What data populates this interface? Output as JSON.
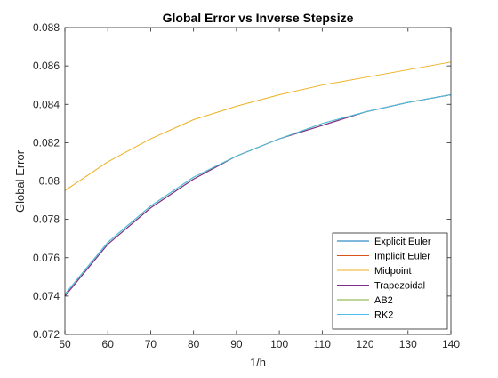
{
  "chart_data": {
    "type": "line",
    "title": "Global Error vs Inverse Stepsize",
    "xlabel": "1/h",
    "ylabel": "Global Error",
    "x": [
      50,
      60,
      70,
      80,
      90,
      100,
      110,
      120,
      130,
      140
    ],
    "xlim": [
      50,
      140
    ],
    "ylim": [
      0.072,
      0.088
    ],
    "xticks": [
      50,
      60,
      70,
      80,
      90,
      100,
      110,
      120,
      130,
      140
    ],
    "xtick_labels": [
      "50",
      "60",
      "70",
      "80",
      "90",
      "100",
      "110",
      "120",
      "130",
      "140"
    ],
    "yticks": [
      0.072,
      0.074,
      0.076,
      0.078,
      0.08,
      0.082,
      0.084,
      0.086,
      0.088
    ],
    "ytick_labels": [
      "0.072",
      "0.074",
      "0.076",
      "0.078",
      "0.08",
      "0.082",
      "0.084",
      "0.086",
      "0.088"
    ],
    "grid": false,
    "legend_position": "bottom-right",
    "series": [
      {
        "name": "Explicit Euler",
        "color": "#0072BD",
        "values": [
          0.074,
          0.0767,
          0.0786,
          0.0801,
          0.0813,
          0.0822,
          0.0829,
          0.0836,
          0.0841,
          0.0845
        ]
      },
      {
        "name": "Implicit Euler",
        "color": "#D95319",
        "values": [
          0.074,
          0.0767,
          0.0786,
          0.0801,
          0.0813,
          0.0822,
          0.0829,
          0.0836,
          0.0841,
          0.0845
        ]
      },
      {
        "name": "Midpoint",
        "color": "#EDB120",
        "values": [
          0.0795,
          0.081,
          0.0822,
          0.0832,
          0.0839,
          0.0845,
          0.085,
          0.0854,
          0.0858,
          0.0862
        ]
      },
      {
        "name": "Trapezoidal",
        "color": "#7E2F8E",
        "values": [
          0.074,
          0.0767,
          0.0786,
          0.0801,
          0.0813,
          0.0822,
          0.0829,
          0.0836,
          0.0841,
          0.0845
        ]
      },
      {
        "name": "AB2",
        "color": "#77AC30",
        "values": [
          0.0741,
          0.0768,
          0.0787,
          0.0802,
          0.0813,
          0.0822,
          0.083,
          0.0836,
          0.0841,
          0.0845
        ]
      },
      {
        "name": "RK2",
        "color": "#4DBEEE",
        "values": [
          0.0741,
          0.0768,
          0.0787,
          0.0802,
          0.0813,
          0.0822,
          0.083,
          0.0836,
          0.0841,
          0.0845
        ]
      }
    ]
  }
}
